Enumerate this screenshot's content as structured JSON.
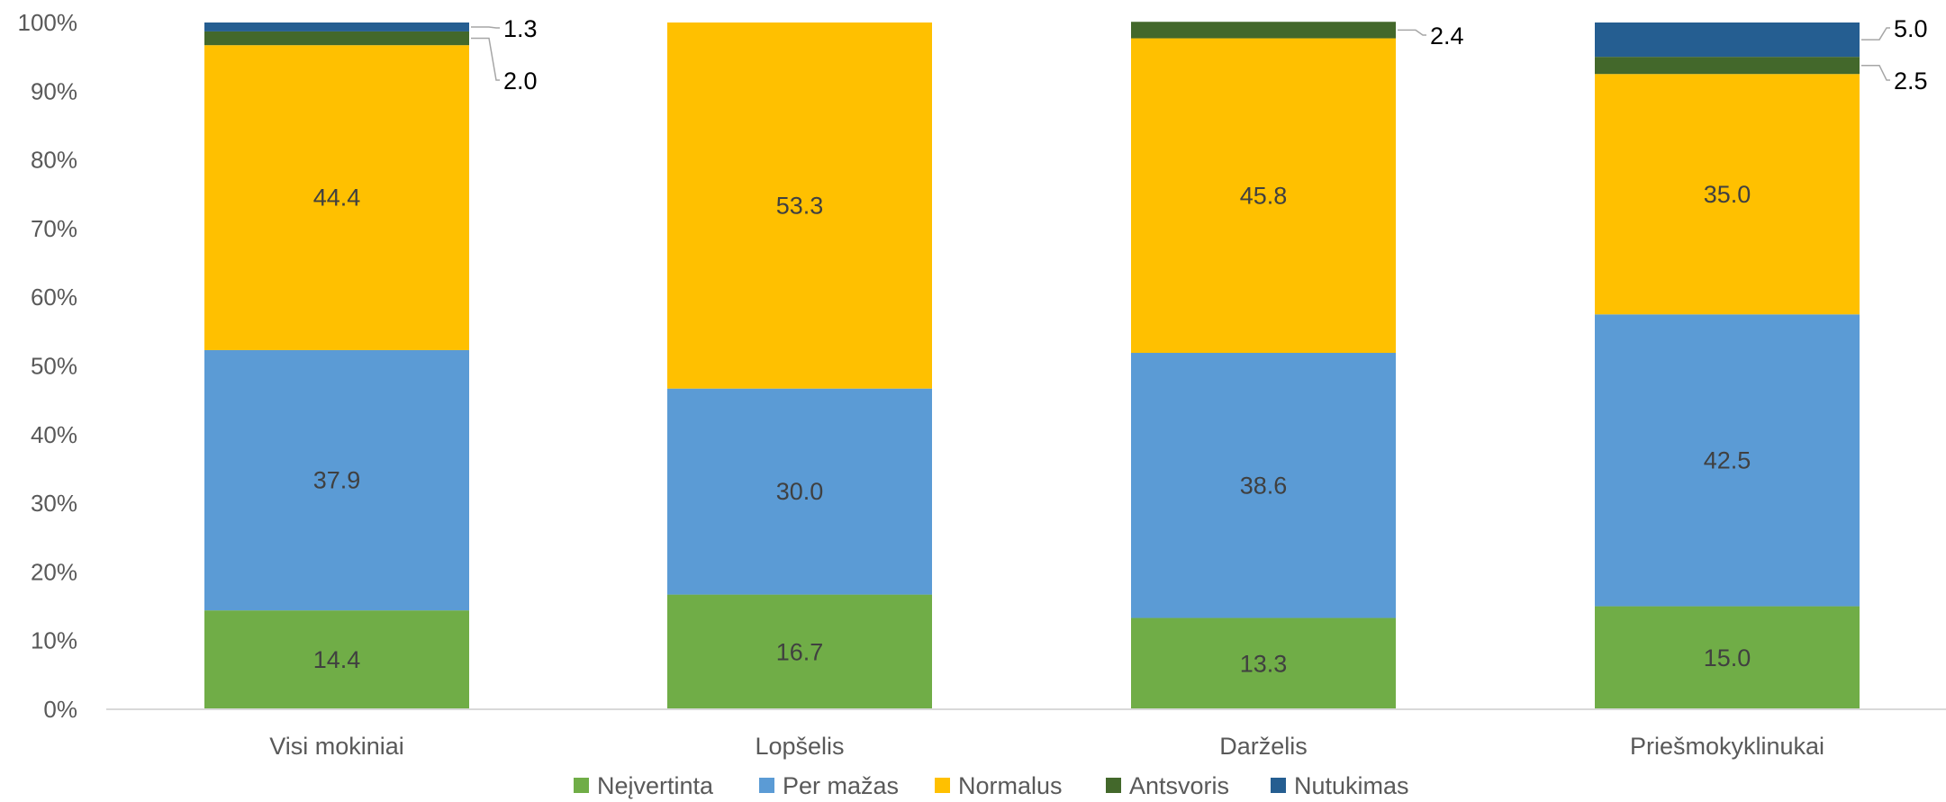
{
  "chart_data": {
    "type": "bar",
    "stacked": true,
    "categories": [
      "Visi mokiniai",
      "Lopšelis",
      "Darželis",
      "Priešmokyklinukai"
    ],
    "series": [
      {
        "name": "Neįvertinta",
        "color": "#70AD47",
        "values": [
          14.4,
          16.7,
          13.3,
          15.0
        ]
      },
      {
        "name": "Per mažas",
        "color": "#5B9BD5",
        "values": [
          37.9,
          30.0,
          38.6,
          42.5
        ]
      },
      {
        "name": "Normalus",
        "color": "#FFC000",
        "values": [
          44.4,
          53.3,
          45.8,
          35.0
        ]
      },
      {
        "name": "Antsvoris",
        "color": "#43682B",
        "values": [
          2.0,
          0,
          2.4,
          2.5
        ]
      },
      {
        "name": "Nutukimas",
        "color": "#255E91",
        "values": [
          1.3,
          0,
          0,
          5.0
        ]
      }
    ],
    "ylim": [
      0,
      100
    ],
    "yticks": [
      "0%",
      "10%",
      "20%",
      "30%",
      "40%",
      "50%",
      "60%",
      "70%",
      "80%",
      "90%",
      "100%"
    ],
    "data_labels": [
      {
        "category": 0,
        "series": 0,
        "text": "14.4"
      },
      {
        "category": 0,
        "series": 1,
        "text": "37.9"
      },
      {
        "category": 0,
        "series": 2,
        "text": "44.4"
      },
      {
        "category": 0,
        "series": 3,
        "text": "2.0",
        "callout": true
      },
      {
        "category": 0,
        "series": 4,
        "text": "1.3",
        "callout": true
      },
      {
        "category": 1,
        "series": 0,
        "text": "16.7"
      },
      {
        "category": 1,
        "series": 1,
        "text": "30.0"
      },
      {
        "category": 1,
        "series": 2,
        "text": "53.3"
      },
      {
        "category": 2,
        "series": 0,
        "text": "13.3"
      },
      {
        "category": 2,
        "series": 1,
        "text": "38.6"
      },
      {
        "category": 2,
        "series": 2,
        "text": "45.8"
      },
      {
        "category": 2,
        "series": 3,
        "text": "2.4",
        "callout": true
      },
      {
        "category": 3,
        "series": 0,
        "text": "15.0"
      },
      {
        "category": 3,
        "series": 1,
        "text": "42.5"
      },
      {
        "category": 3,
        "series": 2,
        "text": "35.0"
      },
      {
        "category": 3,
        "series": 3,
        "text": "2.5",
        "callout": true
      },
      {
        "category": 3,
        "series": 4,
        "text": "5.0",
        "callout": true
      }
    ],
    "grid": false,
    "legend": "bottom"
  }
}
